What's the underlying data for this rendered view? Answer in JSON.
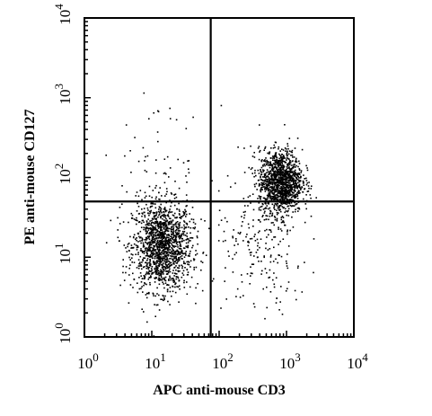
{
  "chart_data": {
    "type": "scatter",
    "title": "",
    "xlabel": "APC anti-mouse CD3",
    "ylabel": "PE anti-mouse CD127",
    "x_scale": "log",
    "y_scale": "log",
    "xlim": [
      1,
      10000
    ],
    "ylim": [
      1,
      10000
    ],
    "x_ticks": [
      {
        "base": "10",
        "exp": "0",
        "value": 1
      },
      {
        "base": "10",
        "exp": "1",
        "value": 10
      },
      {
        "base": "10",
        "exp": "2",
        "value": 100
      },
      {
        "base": "10",
        "exp": "3",
        "value": 1000
      },
      {
        "base": "10",
        "exp": "4",
        "value": 10000
      }
    ],
    "y_ticks": [
      {
        "base": "10",
        "exp": "0",
        "value": 1
      },
      {
        "base": "10",
        "exp": "1",
        "value": 10
      },
      {
        "base": "10",
        "exp": "2",
        "value": 100
      },
      {
        "base": "10",
        "exp": "3",
        "value": 1000
      },
      {
        "base": "10",
        "exp": "4",
        "value": 10000
      }
    ],
    "quadrant_gates": {
      "x": 75,
      "y": 50
    },
    "grid": false,
    "legend": "none",
    "marker_color": "#000000",
    "populations": [
      {
        "center_x": 14,
        "center_y": 14,
        "spread_log_x": 0.22,
        "spread_log_y": 0.28,
        "count": 1500
      },
      {
        "center_x": 800,
        "center_y": 90,
        "spread_log_x": 0.16,
        "spread_log_y": 0.2,
        "count": 1300
      },
      {
        "center_x": 400,
        "center_y": 12,
        "spread_log_x": 0.35,
        "spread_log_y": 0.4,
        "count": 200
      },
      {
        "center_x": 12,
        "center_y": 150,
        "spread_log_x": 0.4,
        "spread_log_y": 0.35,
        "count": 70
      }
    ]
  }
}
